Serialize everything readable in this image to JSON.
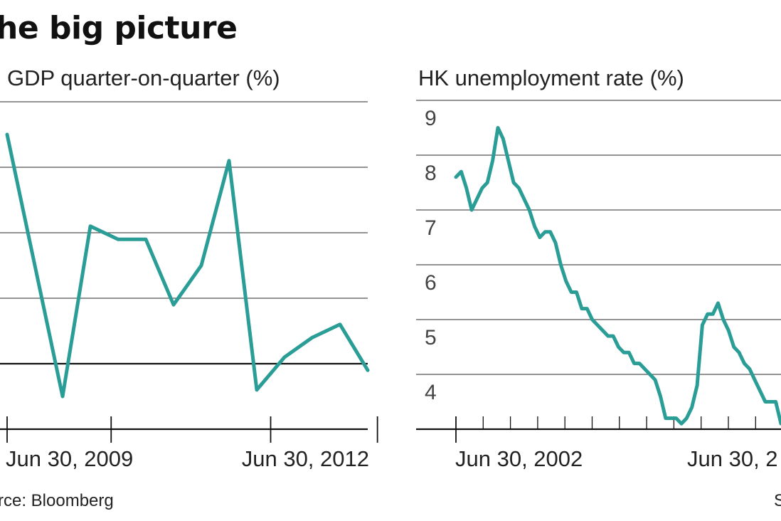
{
  "headline": "he big picture",
  "source_left": "rce: Bloomberg",
  "source_right": "S",
  "colors": {
    "line": "#2a9d96",
    "grid": "#555555",
    "baseline": "#111111",
    "text": "#222222"
  },
  "chart_data": [
    {
      "type": "line",
      "title": "GDP quarter-on-quarter (%)",
      "x_tick_labels": [
        "Jun 30, 2009",
        "Jun 30, 2012"
      ],
      "grid": "horizontal",
      "series": [
        {
          "values": [
            3.5,
            1.5,
            -0.5,
            2.1,
            1.9,
            1.9,
            0.9,
            1.5,
            3.1,
            -0.4,
            0.1,
            0.4,
            0.6,
            -0.1
          ]
        }
      ]
    },
    {
      "type": "line",
      "title": "HK unemployment rate (%)",
      "y_tick_labels": [
        "9",
        "8",
        "7",
        "6",
        "5",
        "4"
      ],
      "x_tick_labels": [
        "Jun 30, 2002",
        "Jun 30, 2"
      ],
      "ylim": [
        3.3,
        9.3
      ],
      "grid": "horizontal",
      "series": [
        {
          "values": [
            7.9,
            8.0,
            7.7,
            7.3,
            7.5,
            7.7,
            7.8,
            8.2,
            8.8,
            8.6,
            8.2,
            7.8,
            7.7,
            7.5,
            7.3,
            7.0,
            6.8,
            6.9,
            6.9,
            6.7,
            6.3,
            6.0,
            5.8,
            5.8,
            5.5,
            5.5,
            5.3,
            5.2,
            5.1,
            5.0,
            5.0,
            4.8,
            4.7,
            4.7,
            4.5,
            4.5,
            4.4,
            4.3,
            4.2,
            3.9,
            3.5,
            3.5,
            3.5,
            3.4,
            3.5,
            3.7,
            4.1,
            5.2,
            5.4,
            5.4,
            5.6,
            5.3,
            5.1,
            4.8,
            4.7,
            4.5,
            4.4,
            4.2,
            4.0,
            3.8,
            3.8,
            3.8,
            3.4
          ]
        }
      ]
    }
  ]
}
